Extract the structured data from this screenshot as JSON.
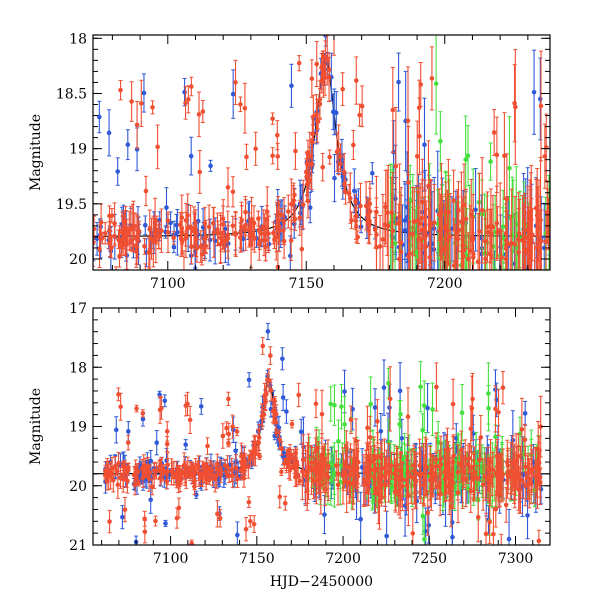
{
  "chart_data": [
    {
      "type": "scatter",
      "panel": "top",
      "title": "",
      "xlabel": "",
      "ylabel": "Magnitude",
      "xlim": [
        7073,
        7238
      ],
      "ylim": [
        20.1,
        17.97
      ],
      "y_inverted": true,
      "xticks": [
        7100,
        7150,
        7200
      ],
      "xtick_labels": [
        "7100",
        "7150",
        "7200"
      ],
      "yticks": [
        18,
        18.5,
        19,
        19.5,
        20
      ],
      "ytick_labels": [
        "18",
        "18.5",
        "19",
        "19.5",
        "20"
      ],
      "model_curve": {
        "name": "model",
        "color": "#000000",
        "baseline": 19.8,
        "peak_x": 7157,
        "peak_mag": 18.2,
        "width": 4.6
      },
      "series": [
        {
          "name": "red",
          "color": "#f04f32",
          "x_range": [
            7073,
            7238
          ],
          "seed": 11,
          "count": 420
        },
        {
          "name": "blue",
          "color": "#2f59d8",
          "x_range": [
            7073,
            7238
          ],
          "seed": 23,
          "count": 200
        },
        {
          "name": "green",
          "color": "#46e03e",
          "x_range": [
            7180,
            7238
          ],
          "seed": 37,
          "count": 70
        }
      ]
    },
    {
      "type": "scatter",
      "panel": "bottom",
      "title": "",
      "xlabel": "HJD−2450000",
      "ylabel": "Magnitude",
      "xlim": [
        7055,
        7320
      ],
      "ylim": [
        21.0,
        17.0
      ],
      "y_inverted": true,
      "xticks": [
        7100,
        7150,
        7200,
        7250,
        7300
      ],
      "xtick_labels": [
        "7100",
        "7150",
        "7200",
        "7250",
        "7300"
      ],
      "yticks": [
        17,
        18,
        19,
        20,
        21
      ],
      "ytick_labels": [
        "17",
        "18",
        "19",
        "20",
        "21"
      ],
      "model_curve": {
        "name": "model",
        "color": "#000000",
        "baseline": 19.8,
        "peak_x": 7157,
        "peak_mag": 18.2,
        "width": 4.6
      },
      "series": [
        {
          "name": "red",
          "color": "#f04f32",
          "x_range": [
            7062,
            7315
          ],
          "seed": 51,
          "count": 520
        },
        {
          "name": "blue",
          "color": "#2f59d8",
          "x_range": [
            7062,
            7315
          ],
          "seed": 67,
          "count": 260
        },
        {
          "name": "green",
          "color": "#46e03e",
          "x_range": [
            7180,
            7315
          ],
          "seed": 79,
          "count": 150
        }
      ]
    }
  ]
}
